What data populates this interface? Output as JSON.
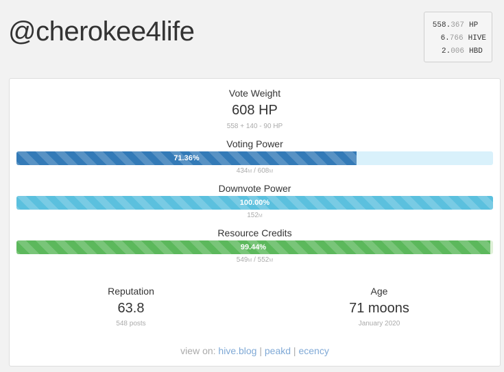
{
  "username": "@cherokee4life",
  "balances": [
    {
      "int": "558.",
      "dec": "367",
      "unit": "HP"
    },
    {
      "int": "6.",
      "dec": "766",
      "unit": "HIVE"
    },
    {
      "int": "2.",
      "dec": "006",
      "unit": "HBD"
    }
  ],
  "vote_weight": {
    "title": "Vote Weight",
    "value": "608 HP",
    "detail": "558 + 140 - 90 HP"
  },
  "voting_power": {
    "title": "Voting Power",
    "percent_label": "71.36%",
    "fill": 0.7136,
    "detail_a": "434",
    "detail_a_unit": "M",
    "detail_sep": " / ",
    "detail_b": "608",
    "detail_b_unit": "M",
    "color": "#337ab7",
    "track": "#d9f1fb"
  },
  "downvote_power": {
    "title": "Downvote Power",
    "percent_label": "100.00%",
    "fill": 1.0,
    "detail_a": "152",
    "detail_a_unit": "M",
    "color": "#5bc0de",
    "track": "#d9f1fb"
  },
  "resource_credits": {
    "title": "Resource Credits",
    "percent_label": "99.44%",
    "fill": 0.9944,
    "detail_a": "549",
    "detail_a_unit": "M",
    "detail_sep": " / ",
    "detail_b": "552",
    "detail_b_unit": "M",
    "color": "#5cb85c",
    "track": "#dff0d8"
  },
  "reputation": {
    "title": "Reputation",
    "value": "63.8",
    "detail": "548 posts"
  },
  "age": {
    "title": "Age",
    "value": "71 moons",
    "detail": "January 2020"
  },
  "footer": {
    "prefix": "view on: ",
    "links": [
      "hive.blog",
      "peakd",
      "ecency"
    ],
    "sep": " | "
  }
}
